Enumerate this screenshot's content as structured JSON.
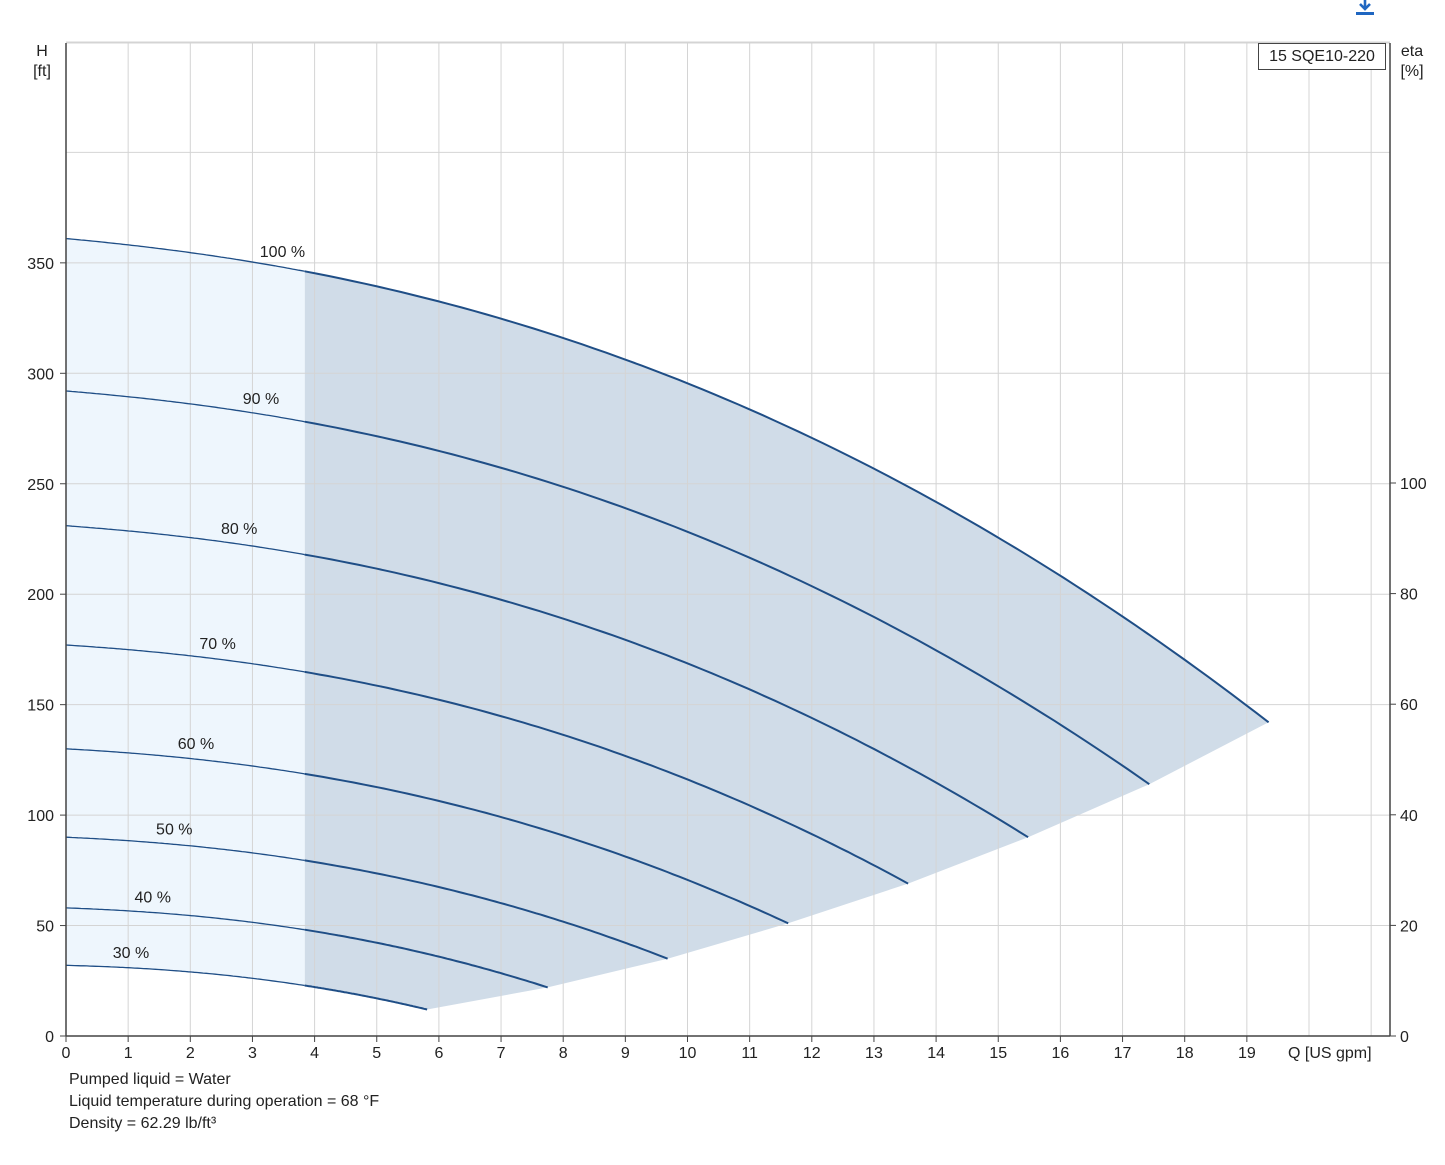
{
  "chart_data": {
    "type": "line",
    "legend": "15 SQE10-220",
    "xlabel": "Q [US gpm]",
    "ylabel_left": [
      "H",
      "[ft]"
    ],
    "ylabel_right": [
      "eta",
      "[%]"
    ],
    "xlim": [
      0,
      21
    ],
    "ylim": [
      0,
      450
    ],
    "eta_lim": [
      0,
      250
    ],
    "x_ticks": [
      0,
      1,
      2,
      3,
      4,
      5,
      6,
      7,
      8,
      9,
      10,
      11,
      12,
      13,
      14,
      15,
      16,
      17,
      18,
      19
    ],
    "y_ticks": [
      0,
      50,
      100,
      150,
      200,
      250,
      300,
      350
    ],
    "eta_ticks": [
      0,
      20,
      40,
      60,
      80,
      100
    ],
    "recommended_min_q": 3.84,
    "series": [
      {
        "name": "100 %",
        "shutoff_head": 361,
        "end": [
          19.35,
          142
        ]
      },
      {
        "name": "90 %",
        "shutoff_head": 292,
        "end": [
          17.43,
          114
        ]
      },
      {
        "name": "80 %",
        "shutoff_head": 231,
        "end": [
          15.48,
          90
        ]
      },
      {
        "name": "70 %",
        "shutoff_head": 177,
        "end": [
          13.55,
          69
        ]
      },
      {
        "name": "60 %",
        "shutoff_head": 130,
        "end": [
          11.62,
          51
        ]
      },
      {
        "name": "50 %",
        "shutoff_head": 90,
        "end": [
          9.68,
          35
        ]
      },
      {
        "name": "40 %",
        "shutoff_head": 58,
        "end": [
          7.75,
          22
        ]
      },
      {
        "name": "30 %",
        "shutoff_head": 32,
        "end": [
          5.81,
          12
        ]
      }
    ]
  },
  "notes": {
    "line1": "Pumped liquid = Water",
    "line2": "Liquid temperature during operation = 68 °F",
    "line3": "Density = 62.29 lb/ft³"
  },
  "colors": {
    "curve": "#1f4e86",
    "operating_fill": "#d0dce8",
    "low_flow_fill": "#eef6fd",
    "grid": "#d4d4d4",
    "download": "#1f66c1"
  },
  "icons": {
    "download": "download-icon"
  }
}
